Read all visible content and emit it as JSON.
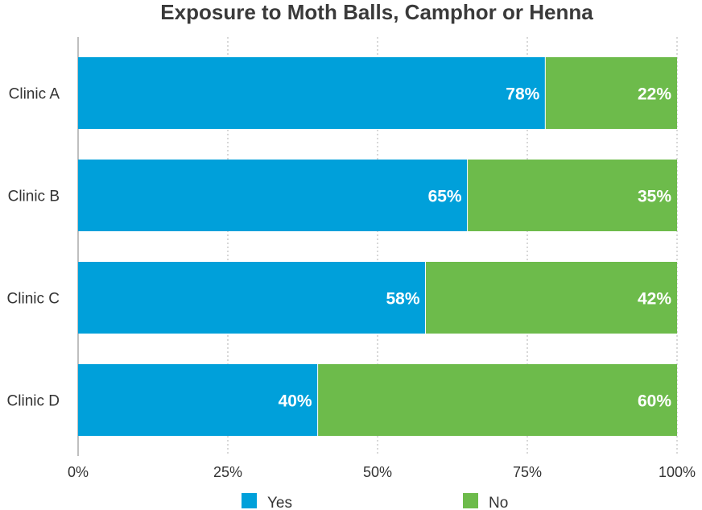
{
  "chart_data": {
    "type": "bar",
    "orientation": "horizontal",
    "stacked": true,
    "title": "Exposure to Moth Balls, Camphor or Henna",
    "categories": [
      "Clinic A",
      "Clinic B",
      "Clinic C",
      "Clinic D"
    ],
    "series": [
      {
        "name": "Yes",
        "color": "#00A0DA",
        "values": [
          78,
          65,
          58,
          40
        ],
        "labels": [
          "78%",
          "65%",
          "58%",
          "40%"
        ]
      },
      {
        "name": "No",
        "color": "#6DBB4B",
        "values": [
          22,
          35,
          42,
          60
        ],
        "labels": [
          "22%",
          "35%",
          "42%",
          "60%"
        ]
      }
    ],
    "xlim": [
      0,
      100
    ],
    "xticks": [
      0,
      25,
      50,
      75,
      100
    ],
    "xtick_labels": [
      "0%",
      "25%",
      "50%",
      "75%",
      "100%"
    ],
    "grid": true,
    "legend_position": "bottom"
  }
}
